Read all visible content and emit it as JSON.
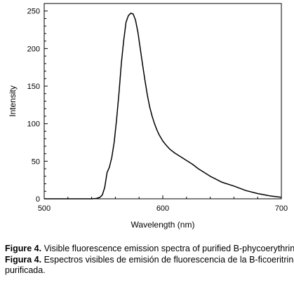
{
  "chart_data": {
    "type": "line",
    "title": "",
    "xlabel": "Wavelength (nm)",
    "ylabel": "Intensity",
    "xlim": [
      500,
      700
    ],
    "ylim": [
      0,
      260
    ],
    "xticks": [
      500,
      600,
      700
    ],
    "xtick_labels": [
      "500",
      "600",
      "700"
    ],
    "yticks": [
      0,
      50,
      100,
      150,
      200,
      250
    ],
    "ytick_labels": [
      "0",
      "50",
      "100",
      "150",
      "200",
      "250"
    ],
    "grid": false,
    "legend": "none",
    "series": [
      {
        "color": "#000000",
        "x": [
          500,
          520,
          540,
          544,
          547,
          549,
          551,
          553,
          555,
          557,
          559,
          561,
          563,
          565,
          567,
          569,
          571,
          573,
          575,
          577,
          579,
          581,
          583,
          585,
          587,
          589,
          591,
          593,
          595,
          597,
          600,
          603,
          606,
          610,
          615,
          620,
          625,
          630,
          640,
          650,
          660,
          670,
          680,
          690,
          700
        ],
        "y": [
          0,
          0,
          0,
          0.5,
          2,
          5,
          15,
          35,
          42,
          55,
          75,
          105,
          140,
          180,
          210,
          235,
          244,
          247,
          246,
          238,
          222,
          200,
          178,
          157,
          138,
          122,
          110,
          100,
          92,
          85,
          77,
          71,
          66,
          61,
          56,
          51,
          46,
          40,
          30,
          22,
          17,
          11,
          7,
          4,
          2
        ]
      }
    ]
  },
  "caption": {
    "line1_label": "Figure 4.",
    "line1_text": " Visible fluorescence emission spectra of purified B-phycoerythrin.",
    "line2_label": "Figura 4.",
    "line2_text": " Espectros visibles de emisión de fluorescencia de la B-ficoeritrina",
    "line3_text": "purificada."
  }
}
